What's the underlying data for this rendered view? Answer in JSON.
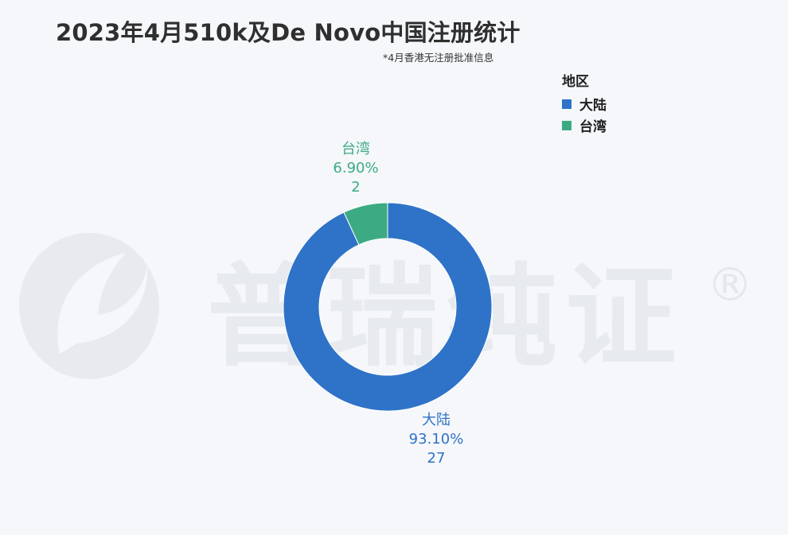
{
  "header": {
    "title": "2023年4月510k及De Novo中国注册统计",
    "subtitle": "*4月香港无注册批准信息"
  },
  "watermark": {
    "text": "普瑞纯证",
    "mark": "®"
  },
  "legend": {
    "title": "地区",
    "items": [
      {
        "label": "大陆",
        "color": "#2e73c8"
      },
      {
        "label": "台湾",
        "color": "#3cab84"
      }
    ]
  },
  "chart_data": {
    "type": "pie",
    "title": "2023年4月510k及De Novo中国注册统计",
    "subtitle": "*4月香港无注册批准信息",
    "legend_title": "地区",
    "legend_position": "top-right",
    "donut": true,
    "slices": [
      {
        "label": "大陆",
        "value": 27,
        "percent": "93.10%",
        "color": "#2e73c8"
      },
      {
        "label": "台湾",
        "value": 2,
        "percent": "6.90%",
        "color": "#3cab84"
      }
    ]
  }
}
